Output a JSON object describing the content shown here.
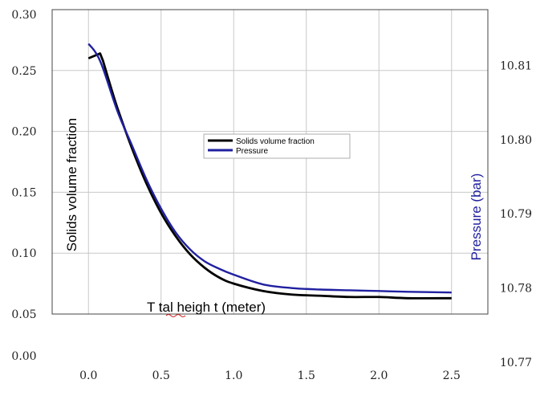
{
  "chart_data": {
    "type": "line",
    "title": "",
    "xlabel": "T tal heigh t (meter)",
    "ylabel": "Solids volume fraction",
    "y2label": "Pressure (bar)",
    "x_ticks": [
      "0.0",
      "0.5",
      "1.0",
      "1.5",
      "2.0",
      "2.5"
    ],
    "y_ticks": [
      "0.00",
      "0.05",
      "0.10",
      "0.15",
      "0.20",
      "0.25",
      "0.30"
    ],
    "y2_ticks": [
      "10.77",
      "10.78",
      "10.79",
      "10.80",
      "10.81"
    ],
    "xlim": [
      -0.25,
      2.75
    ],
    "ylim": [
      0.05,
      0.3
    ],
    "y2lim": [
      10.7765,
      10.8175
    ],
    "grid": true,
    "legend_position": "center",
    "series": [
      {
        "name": "Solids volume fraction",
        "color": "#000000",
        "axis": "left",
        "x": [
          0.0,
          0.08,
          0.1,
          0.15,
          0.2,
          0.3,
          0.4,
          0.5,
          0.6,
          0.7,
          0.8,
          0.9,
          1.0,
          1.2,
          1.4,
          1.6,
          1.8,
          2.0,
          2.2,
          2.5
        ],
        "y": [
          0.26,
          0.264,
          0.258,
          0.238,
          0.219,
          0.186,
          0.157,
          0.133,
          0.114,
          0.099,
          0.088,
          0.08,
          0.075,
          0.069,
          0.066,
          0.065,
          0.064,
          0.064,
          0.063,
          0.063
        ]
      },
      {
        "name": "Pressure",
        "color": "#2020a0",
        "axis": "right",
        "x": [
          0.0,
          0.05,
          0.1,
          0.2,
          0.3,
          0.4,
          0.5,
          0.6,
          0.7,
          0.8,
          0.9,
          1.0,
          1.2,
          1.4,
          1.6,
          1.8,
          2.0,
          2.2,
          2.5
        ],
        "y": [
          10.8129,
          10.8117,
          10.8096,
          10.8038,
          10.7992,
          10.7946,
          10.7907,
          10.7875,
          10.7852,
          10.7836,
          10.7826,
          10.7818,
          10.7805,
          10.78,
          10.7798,
          10.7797,
          10.7796,
          10.7795,
          10.7794
        ]
      }
    ]
  }
}
